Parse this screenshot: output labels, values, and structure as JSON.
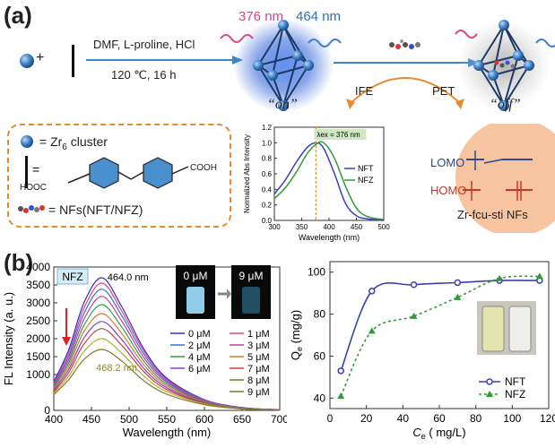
{
  "panel_a": {
    "label": "(a)",
    "reaction": {
      "plus": "+",
      "conditions_line1": "DMF, L-proline, HCl",
      "conditions_line2": "120 ℃, 16 h"
    },
    "excitation_wavelength": "376 nm",
    "emission_wavelength": "464 nm",
    "state_on": "“on”",
    "state_off": "“off”",
    "ife_label": "IFE",
    "pet_label": "PET",
    "legend": {
      "cluster_text": "= Zr",
      "cluster_sub": "6",
      "cluster_suffix": " cluster",
      "linker_eq": "=",
      "linker_left": "HOOC",
      "linker_right": "COOH",
      "nfs_text": "= NFs(NFT/NFZ)"
    },
    "inset_absorption": {
      "ylabel": "Normalized Abs Intensity",
      "xlabel": "Wavelength (nm)",
      "annotation": "λex = 376 nm",
      "xticks": [
        "300",
        "350",
        "400",
        "450",
        "500"
      ],
      "yticks": [
        "0.0",
        "0.2",
        "0.4",
        "0.6",
        "0.8",
        "1.0",
        "1.2"
      ],
      "legend": [
        "NFT",
        "NFZ"
      ]
    },
    "orbital": {
      "lomo": "LOMO",
      "homo": "HOMO",
      "mof": "Zr-fcu-sti NFs"
    }
  },
  "panel_b": {
    "label": "(b)",
    "fl_chart": {
      "tag": "NFZ",
      "ylabel": "FL Intensity (a. u.)",
      "xlabel": "Wavelength (nm)",
      "peak_start": "464.0 nm",
      "peak_end": "468.2 nm",
      "photo_left": "0 μM",
      "photo_right": "9 μM",
      "xticks": [
        "400",
        "450",
        "500",
        "550",
        "600",
        "650",
        "700"
      ],
      "yticks": [
        "0",
        "1000",
        "1500",
        "2000",
        "2500",
        "3000",
        "3500",
        "4000"
      ],
      "legend_left": [
        "0 μM",
        "2 μM",
        "4 μM",
        "6 μM"
      ],
      "legend_right": [
        "1 μM",
        "3 μM",
        "5 μM",
        "7 μM",
        "8 μM",
        "9 μM"
      ]
    },
    "q_chart": {
      "ylabel_main": "Q",
      "ylabel_sub": "e",
      "ylabel_unit": " (mg/g)",
      "xlabel_main": "C",
      "xlabel_sub": "e",
      "xlabel_unit": " ( mg/L)",
      "xticks": [
        "0",
        "20",
        "40",
        "60",
        "80",
        "100",
        "120"
      ],
      "yticks": [
        "40",
        "60",
        "80",
        "100"
      ],
      "legend": [
        "NFT",
        "NFZ"
      ]
    }
  },
  "colors": {
    "arrow_blue": "#3f86c6",
    "orange": "#e88a2e",
    "nft": "#3a3fb5",
    "nfz": "#2e9a3a",
    "glow": "#2b5fd8",
    "orbital_bg": "#f6c4a0"
  },
  "chart_data": [
    {
      "type": "line",
      "title": "",
      "xlabel": "Wavelength (nm)",
      "ylabel": "Normalized Abs Intensity",
      "xlim": [
        300,
        500
      ],
      "ylim": [
        0,
        1.2
      ],
      "x": [
        300,
        320,
        340,
        360,
        376,
        390,
        410,
        430,
        450,
        470,
        500
      ],
      "series": [
        {
          "name": "NFT",
          "values": [
            0.34,
            0.52,
            0.75,
            0.94,
            1.0,
            0.93,
            0.6,
            0.22,
            0.06,
            0.02,
            0.0
          ]
        },
        {
          "name": "NFZ",
          "values": [
            0.28,
            0.42,
            0.62,
            0.86,
            0.98,
            1.0,
            0.8,
            0.44,
            0.16,
            0.05,
            0.01
          ]
        }
      ]
    },
    {
      "type": "line",
      "title": "",
      "xlabel": "Wavelength (nm)",
      "ylabel": "FL Intensity (a. u.)",
      "xlim": [
        400,
        700
      ],
      "ylim": [
        0,
        4000
      ],
      "x": [
        400,
        420,
        440,
        464,
        490,
        520,
        550,
        600,
        650,
        700
      ],
      "series": [
        {
          "name": "0 μM",
          "values": [
            800,
            1700,
            3000,
            3700,
            2900,
            1700,
            900,
            300,
            80,
            20
          ]
        },
        {
          "name": "1 μM",
          "values": [
            760,
            1600,
            2850,
            3550,
            2780,
            1630,
            860,
            290,
            75,
            18
          ]
        },
        {
          "name": "2 μM",
          "values": [
            720,
            1510,
            2700,
            3380,
            2650,
            1550,
            820,
            275,
            70,
            17
          ]
        },
        {
          "name": "3 μM",
          "values": [
            680,
            1420,
            2540,
            3180,
            2500,
            1460,
            780,
            260,
            66,
            16
          ]
        },
        {
          "name": "4 μM",
          "values": [
            640,
            1330,
            2370,
            2950,
            2330,
            1360,
            730,
            245,
            62,
            15
          ]
        },
        {
          "name": "5 μM",
          "values": [
            600,
            1240,
            2200,
            2700,
            2150,
            1260,
            680,
            230,
            58,
            14
          ]
        },
        {
          "name": "6 μM",
          "values": [
            560,
            1150,
            2020,
            2480,
            1980,
            1160,
            630,
            215,
            54,
            13
          ]
        },
        {
          "name": "7 μM",
          "values": [
            520,
            1060,
            1850,
            2280,
            1820,
            1070,
            580,
            200,
            50,
            12
          ]
        },
        {
          "name": "8 μM",
          "values": [
            480,
            960,
            1640,
            2000,
            1600,
            950,
            520,
            180,
            45,
            11
          ]
        },
        {
          "name": "9 μM",
          "values": [
            440,
            860,
            1420,
            1700,
            1380,
            820,
            450,
            160,
            40,
            10
          ]
        }
      ]
    },
    {
      "type": "scatter",
      "title": "",
      "xlabel": "Ce ( mg/L)",
      "ylabel": "Qe (mg/g)",
      "xlim": [
        0,
        120
      ],
      "ylim": [
        35,
        105
      ],
      "series": [
        {
          "name": "NFT",
          "x": [
            6,
            23,
            46,
            70,
            93,
            115
          ],
          "y": [
            53,
            91,
            94,
            95,
            96,
            96
          ]
        },
        {
          "name": "NFZ",
          "x": [
            6,
            23,
            46,
            70,
            93,
            115
          ],
          "y": [
            41,
            72,
            79,
            88,
            97,
            98
          ]
        }
      ]
    }
  ]
}
